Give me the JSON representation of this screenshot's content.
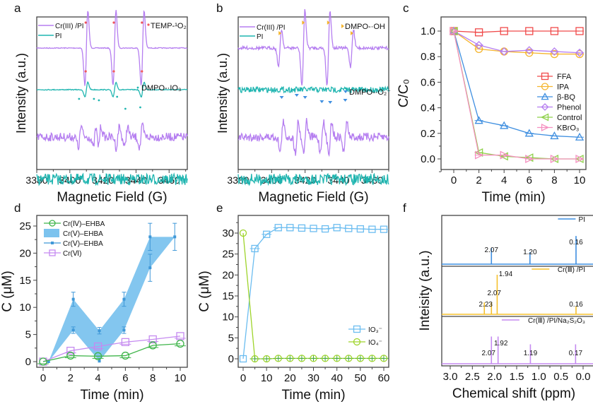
{
  "chart_data": [
    {
      "panel": "a",
      "type": "line",
      "title": "",
      "xlabel": "Magnetic Field (G)",
      "ylabel": "Intensity (a.u.)",
      "xlim": [
        3380,
        3471
      ],
      "xticks": [
        3380,
        3400,
        3420,
        3440,
        3460
      ],
      "legend": {
        "placement": "top-left",
        "entries": [
          {
            "name": "Cr(III) /PI",
            "color": "#b57ef0"
          },
          {
            "name": "PI",
            "color": "#1fb5b0"
          }
        ]
      },
      "annotations": [
        {
          "label": "TEMP-¹O₂",
          "marker_color": "#f0555a",
          "placement": "top-right"
        },
        {
          "label": "DMPO-·IO₃",
          "marker_color": "#1fb5b0",
          "placement": "middle-right"
        }
      ],
      "series": [
        {
          "name": "Cr(III) /PI (TEMP)",
          "color": "#b57ef0",
          "kind": "triplet",
          "peaks": [
            3410,
            3427,
            3444
          ],
          "amplitude": 1.0,
          "offset": 3
        },
        {
          "name": "PI (TEMP)",
          "color": "#1fb5b0",
          "kind": "triplet",
          "peaks": [
            3410,
            3427,
            3444
          ],
          "amplitude": 0.2,
          "offset": 2
        },
        {
          "name": "Cr(III) /PI (DMPO)",
          "color": "#b57ef0",
          "kind": "noisy-peaks",
          "peaks": [
            3406,
            3415,
            3418,
            3429,
            3434,
            3443
          ],
          "amplitude": 0.35,
          "offset": 1
        },
        {
          "name": "PI (DMPO)",
          "color": "#1fb5b0",
          "kind": "noise",
          "amplitude": 0.15,
          "offset": 0
        }
      ],
      "marked_peaks": {
        "TEMP-1O2": [
          3410,
          3427,
          3444
        ],
        "DMPO-IO3": [
          3406,
          3415,
          3418,
          3429,
          3434,
          3443
        ]
      }
    },
    {
      "panel": "b",
      "type": "line",
      "title": "",
      "xlabel": "Magnetic Field (G)",
      "ylabel": "Intensity (a.u.)",
      "xlim": [
        3380,
        3470
      ],
      "xticks": [
        3380,
        3400,
        3420,
        3440,
        3460
      ],
      "legend": {
        "placement": "top-left",
        "entries": [
          {
            "name": "Cr(III) /PI",
            "color": "#b57ef0"
          },
          {
            "name": "PI",
            "color": "#1fb5b0"
          }
        ]
      },
      "annotations": [
        {
          "label": "DMPO-·OH",
          "marker_color": "#f5b52e",
          "placement": "top-right"
        },
        {
          "label": "DMPO-·O₂⁻",
          "marker_color": "#3f8fe0",
          "placement": "middle-right"
        }
      ],
      "series": [
        {
          "name": "Cr(III) /PI (DMPO-OH)",
          "color": "#b57ef0",
          "kind": "quartet",
          "peaks": [
            3405,
            3419,
            3434,
            3448
          ],
          "amplitudes": [
            0.5,
            1.0,
            1.0,
            0.5
          ],
          "offset": 3
        },
        {
          "name": "PI (DMPO-OH)",
          "color": "#1fb5b0",
          "kind": "noise",
          "amplitude": 0.08,
          "offset": 2
        },
        {
          "name": "Cr(III) /PI (DMPO-O2)",
          "color": "#b57ef0",
          "kind": "noisy-peaks",
          "peaks": [
            3406,
            3415,
            3420,
            3430,
            3435,
            3444
          ],
          "amplitude": 0.5,
          "offset": 1
        },
        {
          "name": "PI (DMPO-O2)",
          "color": "#1fb5b0",
          "kind": "noise",
          "amplitude": 0.15,
          "offset": 0
        }
      ]
    },
    {
      "panel": "c",
      "type": "line",
      "title": "",
      "xlabel": "Time (min)",
      "ylabel": "C/C₀",
      "xlim": [
        -1.2,
        11
      ],
      "ylim": [
        -0.1,
        1.08
      ],
      "xticks": [
        0,
        2,
        4,
        6,
        8,
        10
      ],
      "yticks": [
        0.0,
        0.2,
        0.4,
        0.6,
        0.8,
        1.0
      ],
      "legend": {
        "placement": "center-right"
      },
      "x": [
        0,
        2,
        4,
        6,
        8,
        10
      ],
      "series": [
        {
          "name": "FFA",
          "color": "#f04a4a",
          "marker": "square",
          "values": [
            1.0,
            0.99,
            1.0,
            1.0,
            1.0,
            1.0
          ]
        },
        {
          "name": "IPA",
          "color": "#f5b52e",
          "marker": "circle",
          "values": [
            1.0,
            0.86,
            0.84,
            0.83,
            0.82,
            0.82
          ]
        },
        {
          "name": "β-BQ",
          "color": "#3f8fe0",
          "marker": "triangle-up",
          "values": [
            1.0,
            0.3,
            0.26,
            0.2,
            0.18,
            0.17
          ]
        },
        {
          "name": "Phenol",
          "color": "#b57ef0",
          "marker": "diamond",
          "values": [
            1.0,
            0.89,
            0.84,
            0.85,
            0.84,
            0.83
          ]
        },
        {
          "name": "Control",
          "color": "#8fd14a",
          "marker": "triangle-left",
          "values": [
            1.0,
            0.05,
            0.02,
            0.01,
            0.0,
            0.0
          ]
        },
        {
          "name": "KBrO₃",
          "color": "#f590c0",
          "marker": "triangle-right",
          "values": [
            1.0,
            0.03,
            0.03,
            0.0,
            0.0,
            0.0
          ]
        }
      ]
    },
    {
      "panel": "d",
      "type": "line",
      "title": "",
      "xlabel": "Time (min)",
      "ylabel": "C (μM)",
      "xlim": [
        -0.5,
        10.6
      ],
      "ylim": [
        -1,
        27
      ],
      "xticks": [
        0,
        2,
        4,
        6,
        8,
        10
      ],
      "yticks": [
        0,
        5,
        10,
        15,
        20,
        25
      ],
      "legend": {
        "placement": "top-left"
      },
      "series": [
        {
          "name": "Cr(Ⅳ)–EHBA",
          "color": "#3fb54a",
          "marker": "circle",
          "x": [
            0,
            2,
            4,
            6,
            8,
            10
          ],
          "values": [
            0,
            1.1,
            1.0,
            1.1,
            3.0,
            3.3
          ]
        },
        {
          "name": "Cr(Ⅴ)–EHBA",
          "color": "#3f98d8",
          "marker": "band",
          "x": [
            0.4,
            2.2,
            4.1,
            5.9,
            7.8,
            9.6
          ],
          "upper": [
            0,
            11.5,
            5.7,
            11.5,
            23,
            23
          ],
          "lower": [
            0,
            5.8,
            0.1,
            5.8,
            17.3,
            23
          ]
        },
        {
          "name": "Cr(Ⅴ)–EHBA",
          "color": "#3f98d8",
          "marker": "small-square",
          "x": [
            0.4,
            2.2,
            2.2,
            4.1,
            4.1,
            5.9,
            5.9,
            7.8,
            7.8,
            9.6
          ],
          "values": [
            0,
            11.5,
            5.8,
            5.7,
            0.1,
            11.5,
            5.8,
            23,
            17.3,
            23
          ]
        },
        {
          "name": "Cr(Ⅵ)",
          "color": "#c58af0",
          "marker": "square",
          "x": [
            0,
            2,
            4,
            6,
            8,
            10
          ],
          "values": [
            0,
            2.0,
            2.8,
            3.6,
            4.1,
            4.7
          ]
        }
      ]
    },
    {
      "panel": "e",
      "type": "line",
      "title": "",
      "xlabel": "Time (min)",
      "ylabel": "C (μM)",
      "xlim": [
        -3,
        62
      ],
      "ylim": [
        -2,
        34
      ],
      "xticks": [
        0,
        10,
        20,
        30,
        40,
        50,
        60
      ],
      "yticks": [
        0,
        5,
        10,
        15,
        20,
        25,
        30
      ],
      "legend": {
        "placement": "bottom-right"
      },
      "x": [
        0,
        5,
        10,
        15,
        20,
        25,
        30,
        35,
        40,
        45,
        50,
        55,
        60
      ],
      "series": [
        {
          "name": "IO₃⁻",
          "color": "#6cbdf0",
          "marker": "square",
          "values": [
            0,
            26.3,
            29.7,
            31.3,
            31.3,
            31.2,
            31.1,
            31.0,
            31.3,
            31.1,
            31.0,
            30.9,
            30.9
          ]
        },
        {
          "name": "IO₄⁻",
          "color": "#9ed42a",
          "marker": "circle",
          "values": [
            30,
            0,
            0,
            0.1,
            0.1,
            0.1,
            0.1,
            0.1,
            0.1,
            0.1,
            0.1,
            0.1,
            0.1
          ]
        }
      ]
    },
    {
      "panel": "f",
      "type": "line",
      "title": "",
      "xlabel": "Chemical shift (ppm)",
      "ylabel": "Inteisity (a.u.)",
      "xlim": [
        3.25,
        -0.05
      ],
      "xticks": [
        3.0,
        2.5,
        2.0,
        1.5,
        1.0,
        0.5,
        0.0
      ],
      "xtick_labels": [
        "3.0",
        "2.5",
        "2.0",
        "1.5",
        "1.0",
        "0.5",
        "0.0"
      ],
      "series": [
        {
          "name": "PI",
          "color": "#3f8fe0",
          "peaks": [
            {
              "x": 2.07,
              "h": 0.4,
              "label": "2.07"
            },
            {
              "x": 1.2,
              "h": 0.3,
              "label": "1.20"
            },
            {
              "x": 0.16,
              "h": 0.7,
              "label": "0.16"
            }
          ]
        },
        {
          "name": "Cr(Ⅲ) /PI",
          "color": "#f5c02e",
          "peaks": [
            {
              "x": 2.23,
              "h": 0.3,
              "label": "2.23"
            },
            {
              "x": 2.07,
              "h": 0.3,
              "label": "2.07"
            },
            {
              "x": 1.94,
              "h": 1.0,
              "label": "1.94"
            },
            {
              "x": 0.16,
              "h": 0.2,
              "label": "0.16"
            }
          ]
        },
        {
          "name": "Cr(Ⅲ) /PI/Na₂S₂O₃",
          "color": "#c58af0",
          "peaks": [
            {
              "x": 2.07,
              "h": 0.7,
              "label": "2.07"
            },
            {
              "x": 1.92,
              "h": 0.7,
              "label": "1.92"
            },
            {
              "x": 1.19,
              "h": 0.5,
              "label": "1.19"
            },
            {
              "x": 0.17,
              "h": 0.5,
              "label": "0.17"
            }
          ]
        }
      ]
    }
  ],
  "panel_labels": [
    "a",
    "b",
    "c",
    "d",
    "e",
    "f"
  ]
}
